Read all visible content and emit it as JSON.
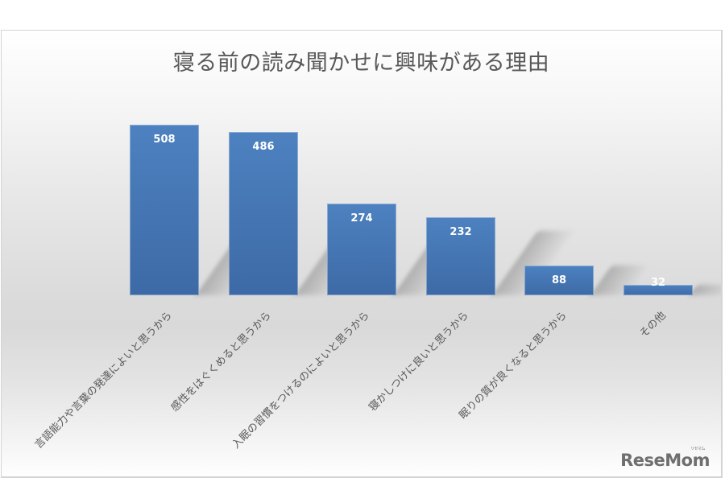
{
  "chart_data": {
    "type": "bar",
    "title": "寝る前の読み聞かせに興味がある理由",
    "categories": [
      "言語能力や言葉の発達によいと思うから",
      "感性をはぐくめると思うから",
      "入眠の習慣をつけるのによいと思うから",
      "寝かしつけに良いと思うから",
      "眠りの質が良くなると思うから",
      "その他"
    ],
    "values": [
      508,
      486,
      274,
      232,
      88,
      32
    ],
    "data_labels": [
      "508",
      "486",
      "274",
      "232",
      "88",
      "32"
    ],
    "xlabel": "",
    "ylabel": "",
    "ylim": [
      0,
      520
    ],
    "grid": false,
    "legend": null,
    "bar_color": "#4a7ebb",
    "orientation": "vertical",
    "x_tick_rotation": -45
  },
  "watermark": {
    "text": "ReseMom",
    "ruby": "リセマム"
  }
}
